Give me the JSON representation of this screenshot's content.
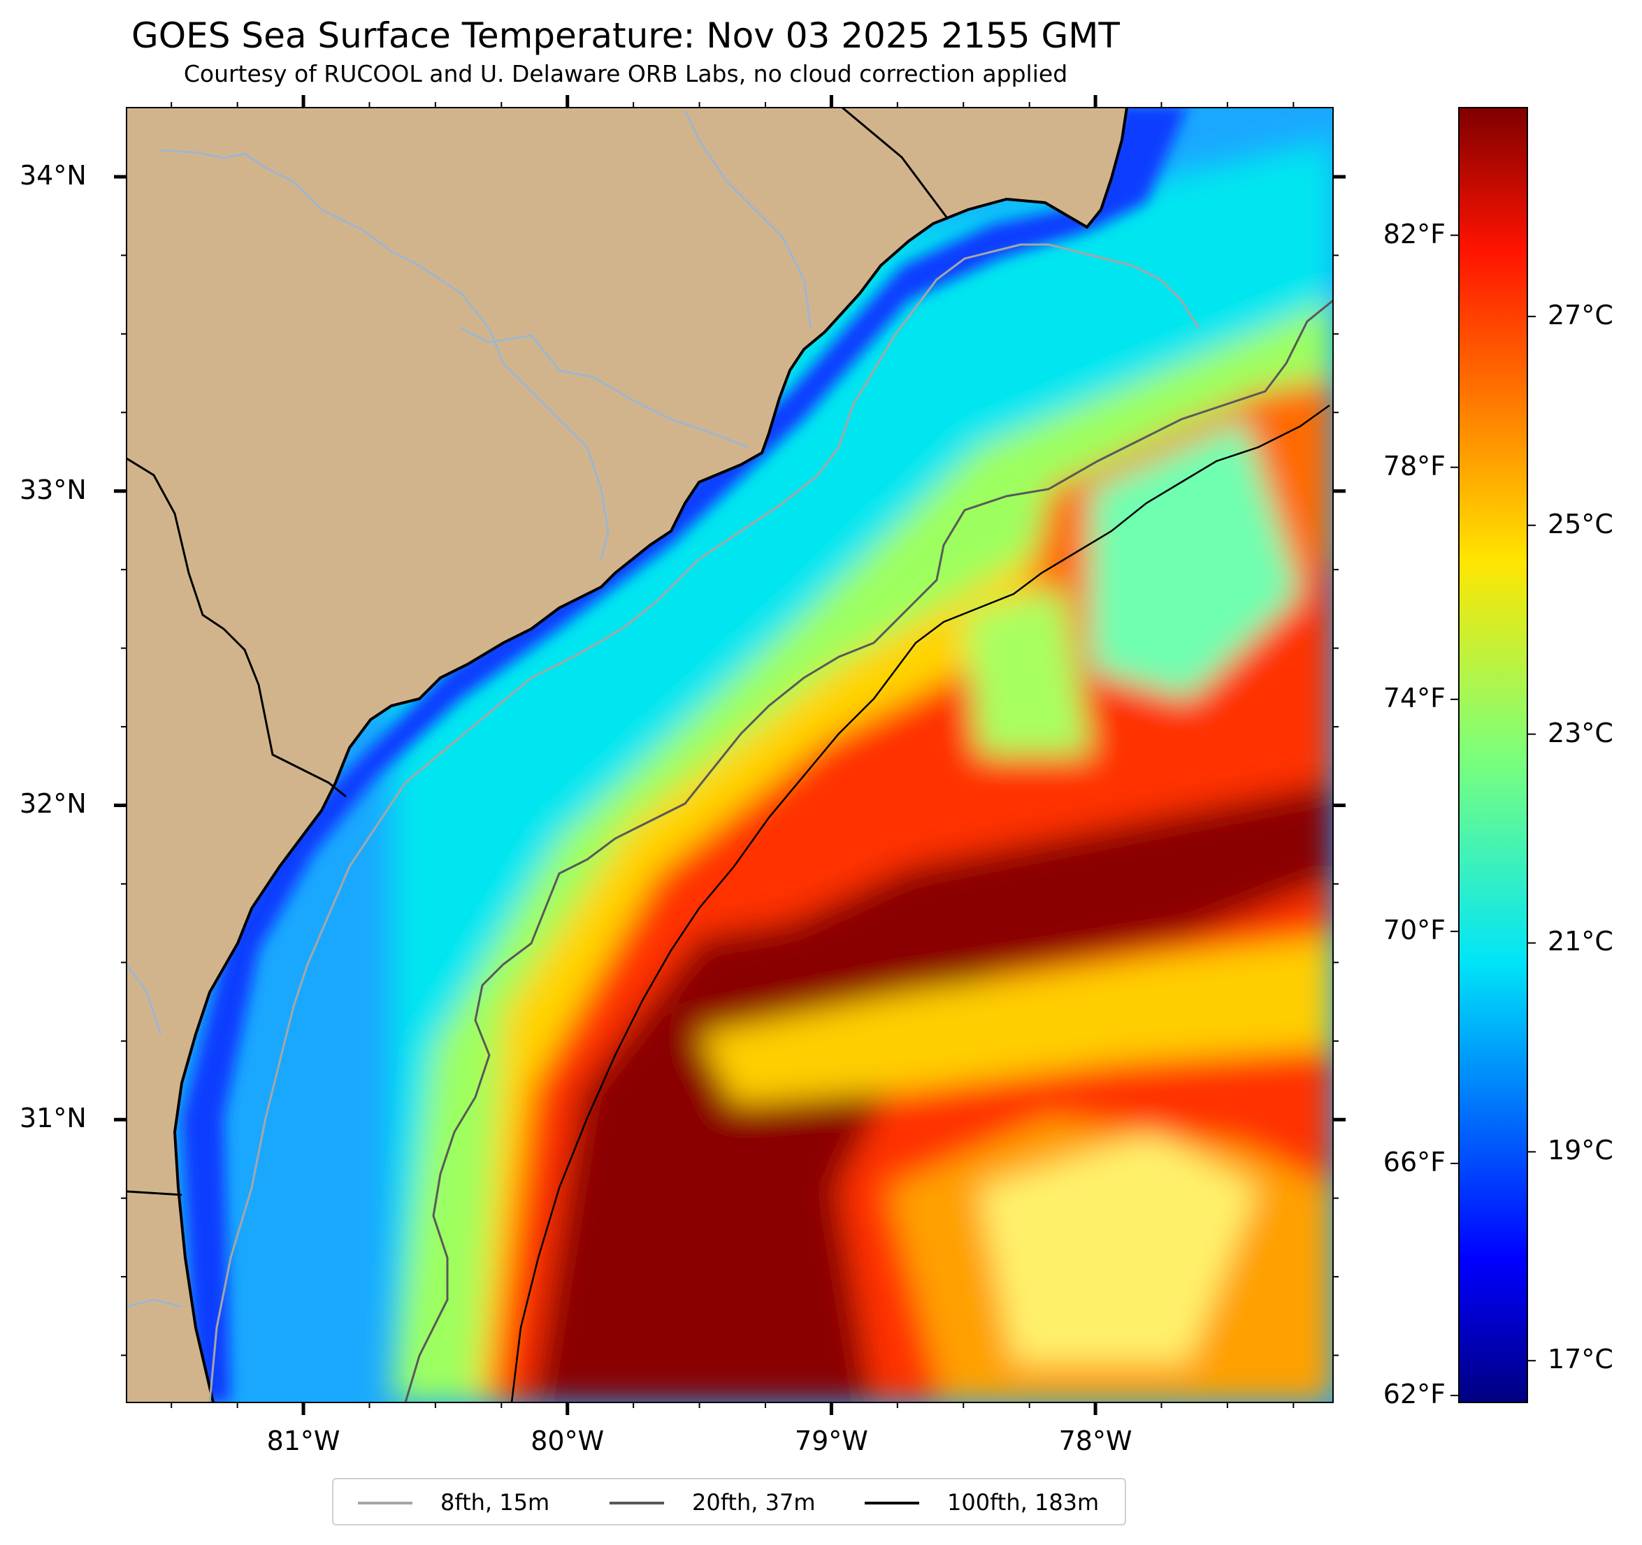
{
  "title": "GOES Sea Surface Temperature: Nov 03 2025 2155 GMT",
  "subtitle": "Courtesy of RUCOOL and U. Delaware ORB Labs, no cloud correction applied",
  "map": {
    "extent": {
      "lon": [
        -81.67,
        -77.1
      ],
      "lat": [
        30.1,
        34.22
      ]
    },
    "land_color": "#d2b48c",
    "coast_color": "#000000",
    "river_color": "#9fb6cd",
    "lat_ticks": [
      {
        "value": 34,
        "label": "34°N"
      },
      {
        "value": 33,
        "label": "33°N"
      },
      {
        "value": 32,
        "label": "32°N"
      },
      {
        "value": 31,
        "label": "31°N"
      }
    ],
    "lon_ticks": [
      {
        "value": -81,
        "label": "81°W"
      },
      {
        "value": -80,
        "label": "80°W"
      },
      {
        "value": -79,
        "label": "79°W"
      },
      {
        "value": -78,
        "label": "78°W"
      }
    ]
  },
  "colorbar": {
    "colormap": "jet",
    "range_c": [
      16.6,
      29.0
    ],
    "fahrenheit_labels": [
      {
        "value": 82,
        "label": "82°F"
      },
      {
        "value": 78,
        "label": "78°F"
      },
      {
        "value": 74,
        "label": "74°F"
      },
      {
        "value": 70,
        "label": "70°F"
      },
      {
        "value": 66,
        "label": "66°F"
      },
      {
        "value": 62,
        "label": "62°F"
      }
    ],
    "celsius_labels": [
      {
        "value": 27,
        "label": "27°C"
      },
      {
        "value": 25,
        "label": "25°C"
      },
      {
        "value": 23,
        "label": "23°C"
      },
      {
        "value": 21,
        "label": "21°C"
      },
      {
        "value": 19,
        "label": "19°C"
      },
      {
        "value": 17,
        "label": "17°C"
      }
    ]
  },
  "legend": [
    {
      "label": "8fth, 15m",
      "color": "#a6a6a6"
    },
    {
      "label": "20fth, 37m",
      "color": "#595959"
    },
    {
      "label": "100fth, 183m",
      "color": "#000000"
    }
  ]
}
